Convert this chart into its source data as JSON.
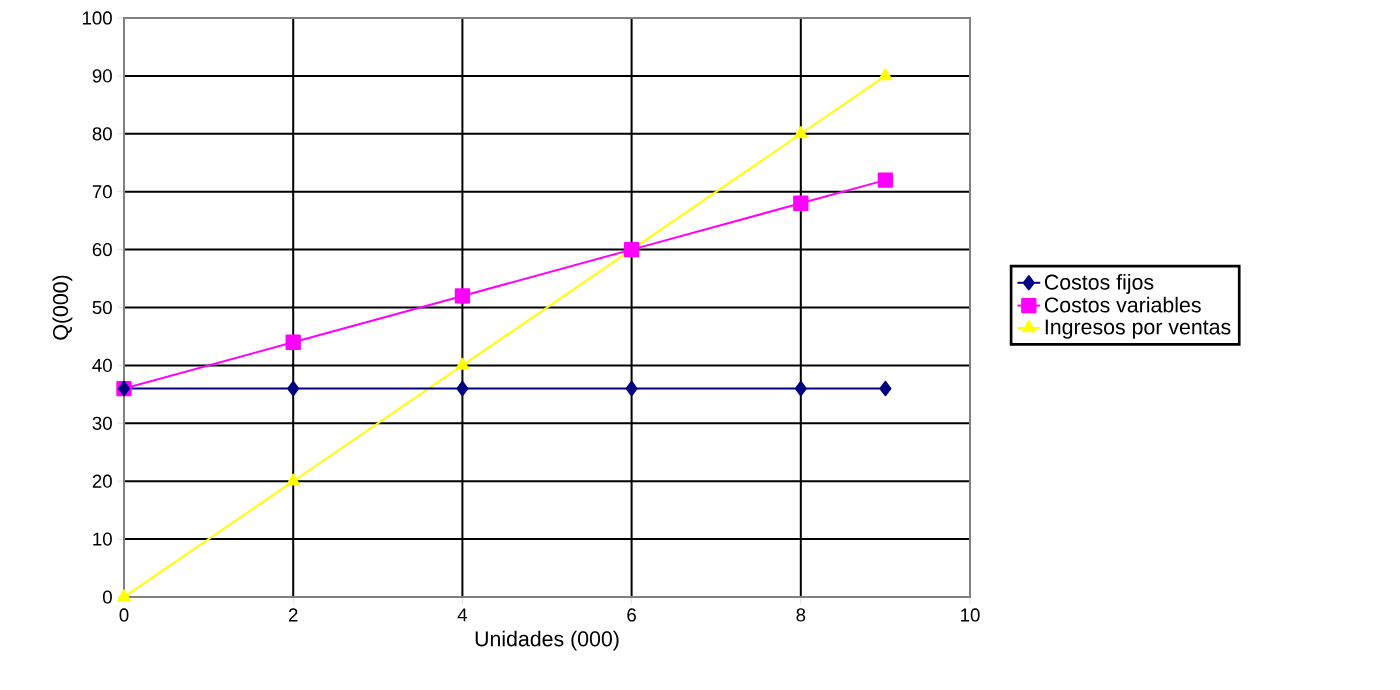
{
  "chart_data": {
    "type": "line",
    "xlabel": "Unidades (000)",
    "ylabel": "Q(000)",
    "xlim": [
      0,
      10
    ],
    "xticks": [
      0,
      2,
      4,
      6,
      8,
      10
    ],
    "ylim": [
      0,
      100
    ],
    "yticks": [
      0,
      10,
      20,
      30,
      40,
      50,
      60,
      70,
      80,
      90,
      100
    ],
    "grid": true,
    "legend": "right",
    "line_style": "solid",
    "series": [
      {
        "name": "Costos fijos",
        "color": "#000080",
        "marker": "diamond",
        "x": [
          0,
          2,
          4,
          6,
          8,
          9
        ],
        "values": [
          36,
          36,
          36,
          36,
          36,
          36
        ]
      },
      {
        "name": "Costos variables",
        "color": "#ff00ff",
        "marker": "square",
        "x": [
          0,
          2,
          4,
          6,
          8,
          9
        ],
        "values": [
          36,
          44,
          52,
          60,
          68,
          72
        ]
      },
      {
        "name": "Ingresos por ventas",
        "color": "#ffff00",
        "marker": "triangle",
        "x": [
          0,
          2,
          4,
          6,
          8,
          9
        ],
        "values": [
          0,
          20,
          40,
          60,
          80,
          90
        ]
      }
    ]
  }
}
